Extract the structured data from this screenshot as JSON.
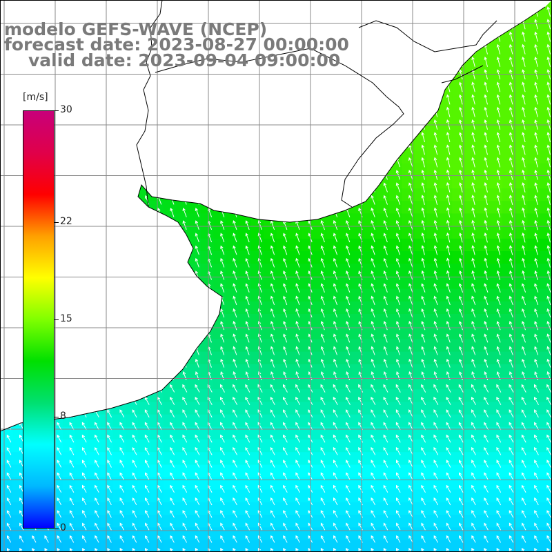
{
  "map": {
    "title_line1": "modelo GEFS-WAVE (NCEP)",
    "title_line2": "forecast date: 2023-08-27 00:00:00",
    "title_line3": "valid date: 2023-09-04 09:00:00",
    "variable": "wind speed",
    "colors": {
      "land": "#ffffff",
      "grid": "#888888",
      "coast": "#000000",
      "arrow": "#ffffff"
    }
  },
  "colorbar": {
    "unit_label": "[m/s]",
    "ticks": [
      {
        "value": 30,
        "label": "30"
      },
      {
        "value": 22,
        "label": "22"
      },
      {
        "value": 15,
        "label": "15"
      },
      {
        "value": 8,
        "label": "8"
      },
      {
        "value": 0,
        "label": "0"
      }
    ],
    "min": 0,
    "max": 30,
    "stops": [
      "#0000ff",
      "#00b8ff",
      "#00ffff",
      "#00e070",
      "#00e000",
      "#80ff00",
      "#ffff00",
      "#ffa000",
      "#ff0000",
      "#e0004a",
      "#c8007a"
    ]
  }
}
